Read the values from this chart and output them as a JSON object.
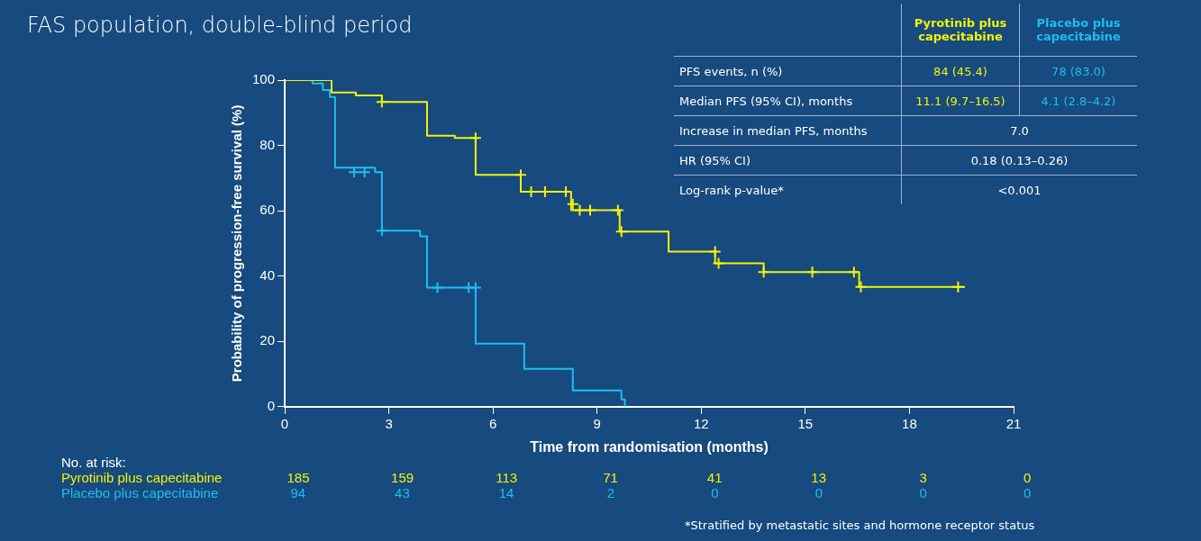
{
  "chart_data": {
    "type": "step",
    "title": "FAS population, double-blind period",
    "xlabel": "Time from randomisation (months)",
    "ylabel": "Probability of progression-free survival (%)",
    "xlim": [
      0,
      21
    ],
    "xticks": [
      0,
      3,
      6,
      9,
      12,
      15,
      18,
      21
    ],
    "ylim": [
      0,
      100
    ],
    "yticks": [
      0,
      20,
      40,
      60,
      80,
      100
    ],
    "grid": false,
    "legend": false,
    "line_style": "solid",
    "series": [
      {
        "name": "Pyrotinib plus capecitabine",
        "color": "#f2f20a",
        "x": [
          0,
          1.35,
          2.05,
          2.8,
          4.1,
          4.9,
          5.5,
          6.8,
          8.25,
          9.65,
          11.06,
          12.4,
          13.8,
          16.55,
          19.6
        ],
        "values": [
          100,
          96.2,
          95.3,
          93.3,
          83,
          82.3,
          71,
          65.8,
          60.2,
          53.6,
          47.5,
          43.9,
          41.2,
          36.7,
          36.7
        ]
      },
      {
        "name": "Placebo plus capecitabine",
        "color": "#1ebef0",
        "x": [
          0,
          0.8,
          1.1,
          1.3,
          1.45,
          2.6,
          2.8,
          3.9,
          4.1,
          5.5,
          6.9,
          8.3,
          9.7,
          9.8
        ],
        "values": [
          100,
          99,
          97,
          94.8,
          73.2,
          71.8,
          53.9,
          52.2,
          36.5,
          19.3,
          11.6,
          5,
          2.2,
          0
        ]
      },
      {
        "type": "scatter",
        "marker": "cross",
        "color": "#f2f20a",
        "x": [
          2.8,
          5.5,
          6.8,
          7.1,
          7.5,
          8.1,
          8.3,
          8.5,
          8.8,
          9.6,
          9.7,
          12.4,
          12.5,
          13.8,
          15.2,
          16.4,
          16.6,
          19.4
        ],
        "values": [
          93.3,
          82.3,
          71,
          65.8,
          65.8,
          65.8,
          62,
          60.2,
          60.2,
          60.2,
          53.6,
          47.5,
          43.9,
          41.2,
          41.2,
          41.2,
          36.7,
          36.7
        ]
      },
      {
        "type": "scatter",
        "marker": "cross",
        "color": "#1ebef0",
        "x": [
          2.0,
          2.3,
          2.8,
          4.4,
          5.3,
          5.5
        ],
        "values": [
          71.8,
          71.8,
          53.9,
          36.5,
          36.5,
          36.5
        ]
      }
    ],
    "annotations": [
      "No. at risk:",
      "185",
      "159",
      "113",
      "71",
      "41",
      "13",
      "3",
      "0",
      "94",
      "43",
      "14",
      "2",
      "0",
      "0",
      "0",
      "0",
      "PFS events, n (%)",
      "84 (45.4)",
      "78 (83.0)",
      "Median PFS (95% CI), months",
      "11.1 (9.7–16.5)",
      "4.1 (2.8–4.2)",
      "Increase in median PFS, months",
      "7.0",
      "HR (95% CI)",
      "0.18 (0.13–0.26)",
      "Log-rank p-value*",
      "<0.001",
      "*Stratified by metastatic sites and hormone receptor status"
    ]
  }
}
